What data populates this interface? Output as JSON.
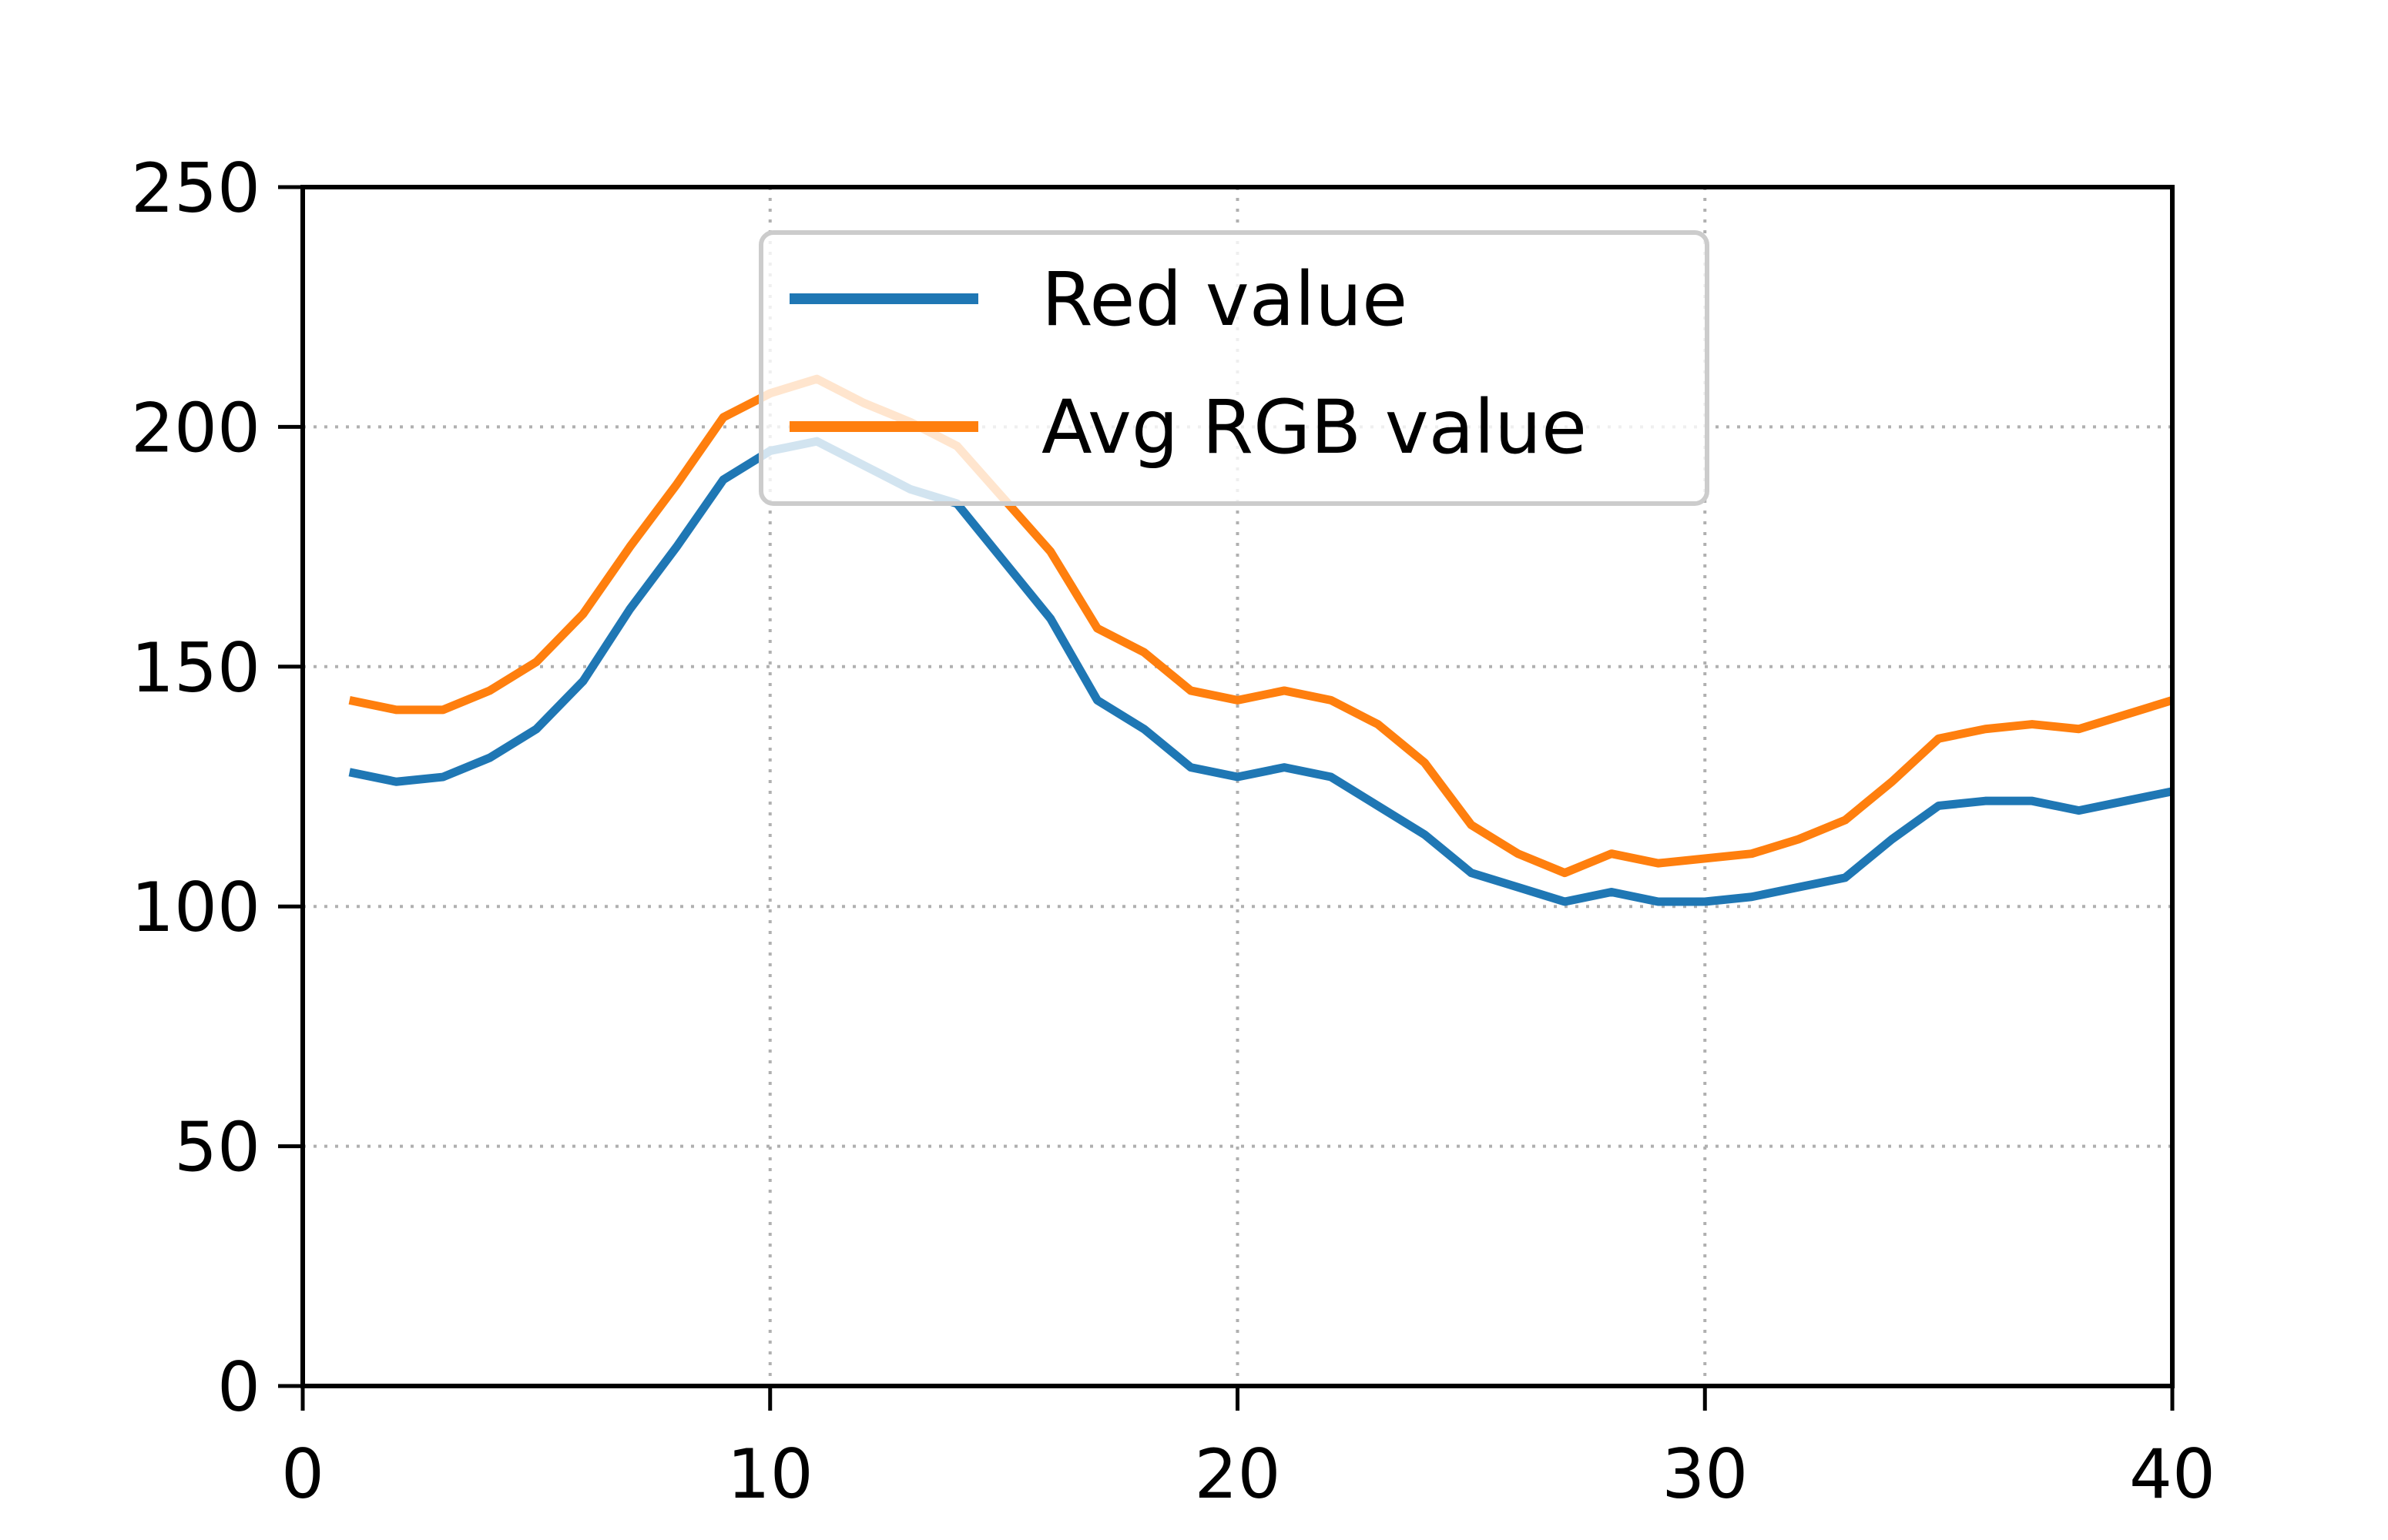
{
  "chart_data": {
    "type": "line",
    "title": "",
    "xlabel": "",
    "ylabel": "",
    "xlim": [
      0,
      40
    ],
    "ylim": [
      0,
      250
    ],
    "xticks": [
      0,
      10,
      20,
      30,
      40
    ],
    "yticks": [
      0,
      50,
      100,
      150,
      200,
      250
    ],
    "grid": true,
    "legend_position": "upper-center",
    "x": [
      1,
      2,
      3,
      4,
      5,
      6,
      7,
      8,
      9,
      10,
      11,
      12,
      13,
      14,
      15,
      16,
      17,
      18,
      19,
      20,
      21,
      22,
      23,
      24,
      25,
      26,
      27,
      28,
      29,
      30,
      31,
      32,
      33,
      34,
      35,
      36,
      37,
      38,
      39,
      40
    ],
    "series": [
      {
        "name": "Red value",
        "color": "#1f77b4",
        "values": [
          128,
          126,
          127,
          131,
          137,
          147,
          162,
          175,
          189,
          195,
          197,
          192,
          187,
          184,
          172,
          160,
          143,
          137,
          129,
          127,
          129,
          127,
          121,
          115,
          107,
          104,
          101,
          103,
          101,
          101,
          102,
          104,
          106,
          114,
          121,
          122,
          122,
          120,
          122,
          124
        ]
      },
      {
        "name": "Avg RGB value",
        "color": "#ff7f0e",
        "values": [
          143,
          141,
          141,
          145,
          151,
          161,
          175,
          188,
          202,
          207,
          210,
          205,
          201,
          196,
          185,
          174,
          158,
          153,
          145,
          143,
          145,
          143,
          138,
          130,
          117,
          111,
          107,
          111,
          109,
          110,
          111,
          114,
          118,
          126,
          135,
          137,
          138,
          137,
          140,
          143
        ]
      }
    ]
  }
}
